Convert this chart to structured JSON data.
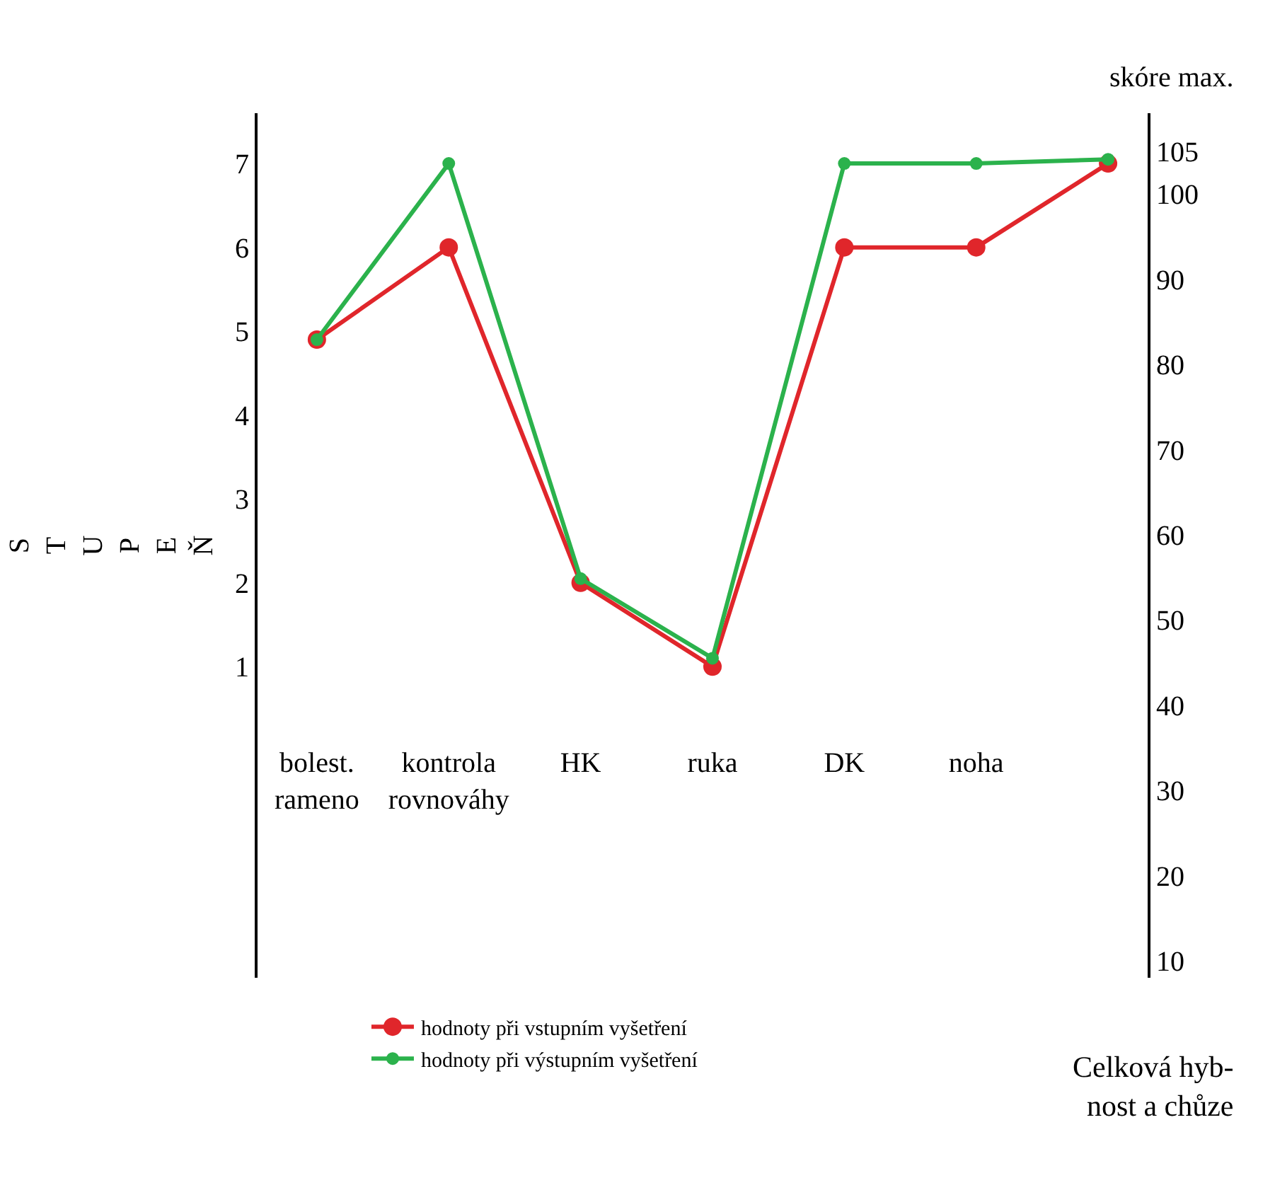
{
  "chart_data": {
    "type": "line",
    "ylabel": "STUPEŇ",
    "y2label": "skóre max.",
    "categories": [
      "bolest.\nrameno",
      "kontrola\nrovnováhy",
      "HK",
      "ruka",
      "DK",
      "noha",
      null
    ],
    "series": [
      {
        "name": "hodnoty při vstupním vyšetření",
        "color": "#e0262b",
        "values": [
          4.9,
          6,
          2,
          1,
          6,
          6,
          7
        ]
      },
      {
        "name": "hodnoty při výstupním vyšetření",
        "color": "#2bb24c",
        "values": [
          4.9,
          7,
          2.05,
          1.1,
          7,
          7,
          7.05
        ]
      }
    ],
    "ylim": [
      -2.71,
      7.6
    ],
    "yticks": [
      1,
      2,
      3,
      4,
      5,
      6,
      7
    ],
    "y2lim": [
      8,
      109.5
    ],
    "y2ticks": [
      105,
      100,
      90,
      80,
      70,
      60,
      50,
      40,
      30,
      20,
      10
    ],
    "annotations": [
      "Celková hyb-\nnost a chůze"
    ],
    "marker": "circle",
    "line_style": "solid",
    "legend": "bottom left"
  }
}
